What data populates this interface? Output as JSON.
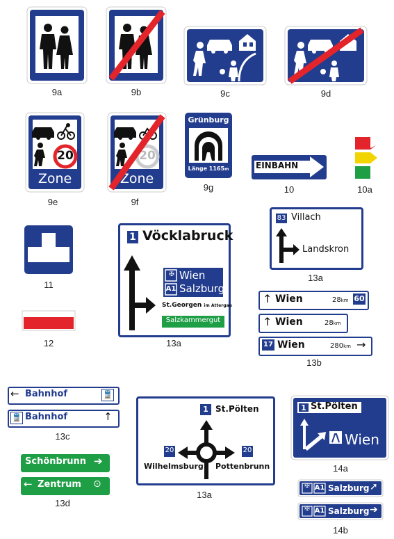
{
  "colors": {
    "blue": "#233d8e",
    "green": "#1e9e45",
    "red": "#e3242b",
    "yellow": "#f2d500",
    "white": "#ffffff"
  },
  "captions": {
    "c9a": "9a",
    "c9b": "9b",
    "c9c": "9c",
    "c9d": "9d",
    "c9e": "9e",
    "c9f": "9f",
    "c9g": "9g",
    "c10": "10",
    "c10a": "10a",
    "c11": "11",
    "c12": "12",
    "c13a_1": "13a",
    "c13a_2": "13a",
    "c13b": "13b",
    "c13c": "13c",
    "c13d": "13d",
    "c13a_3": "13a",
    "c14a": "14a",
    "c14b": "14b"
  },
  "zone": {
    "label": "Zone",
    "speed": "20"
  },
  "tunnel": {
    "name": "Grünburg",
    "length": "Länge 1165",
    "unit": "m"
  },
  "einbahn": "EINBAHN",
  "sign13a_big": {
    "route_no": "1",
    "main": "Vöcklabruck",
    "wien": "Wien",
    "a1": "A1",
    "salzburg": "Salzburg",
    "stg": "St.Georgen",
    "stg_small": "im Attergau",
    "green": "Salzkammergut"
  },
  "sign13a_right": {
    "route_no": "83",
    "top": "Villach",
    "right": "Landskron"
  },
  "sign13b": [
    {
      "dest": "Wien",
      "dist": "28",
      "unit": "km",
      "badge": "60"
    },
    {
      "dest": "Wien",
      "dist": "28",
      "unit": "km"
    },
    {
      "route": "17",
      "dest": "Wien",
      "dist": "280",
      "unit": "km"
    }
  ],
  "sign13c": [
    "Bahnhof",
    "Bahnhof"
  ],
  "sign13d": [
    "Schönbrunn",
    "Zentrum"
  ],
  "sign13a_round": {
    "top_no": "1",
    "top": "St.Pölten",
    "left_no": "20",
    "left": "Wilhelmsburg",
    "right_no": "20",
    "right": "Pottenbrunn"
  },
  "sign14a": {
    "route_no": "1",
    "top": "St.Pölten",
    "wien": "Wien"
  },
  "sign14b": {
    "a1": "A1",
    "dest": "Salzburg"
  }
}
